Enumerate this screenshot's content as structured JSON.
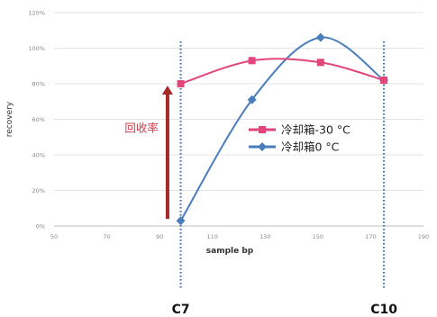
{
  "chart_data": {
    "type": "line",
    "xlabel": "sample bp",
    "ylabel": "recovery",
    "xlim": [
      50,
      190
    ],
    "ylim": [
      0,
      120
    ],
    "x_ticks": [
      "50",
      "70",
      "90",
      "110",
      "130",
      "150",
      "170",
      "190"
    ],
    "y_ticks": [
      "0%",
      "20%",
      "40%",
      "60%",
      "80%",
      "100%",
      "120%"
    ],
    "grid": "horizontal",
    "legend_position": "center-right",
    "series": [
      {
        "name": "冷却箱-30 °C",
        "color": "#e0457b",
        "marker": "square",
        "x": [
          98,
          125,
          151,
          175
        ],
        "y": [
          80,
          93,
          92,
          82
        ]
      },
      {
        "name": "冷却箱0 °C",
        "color": "#4a7ebb",
        "marker": "diamond",
        "x": [
          98,
          125,
          151,
          175
        ],
        "y": [
          3,
          71,
          106,
          82
        ]
      }
    ],
    "reference_lines": [
      {
        "x": 98,
        "label": "C7",
        "color": "#3a6fb5"
      },
      {
        "x": 175,
        "label": "C10",
        "color": "#3a6fb5"
      }
    ],
    "annotations": [
      {
        "text": "回收率",
        "color": "#d0404b",
        "arrow_from": 3,
        "arrow_to": 80,
        "arrow_color": "#a52a2a"
      }
    ]
  }
}
